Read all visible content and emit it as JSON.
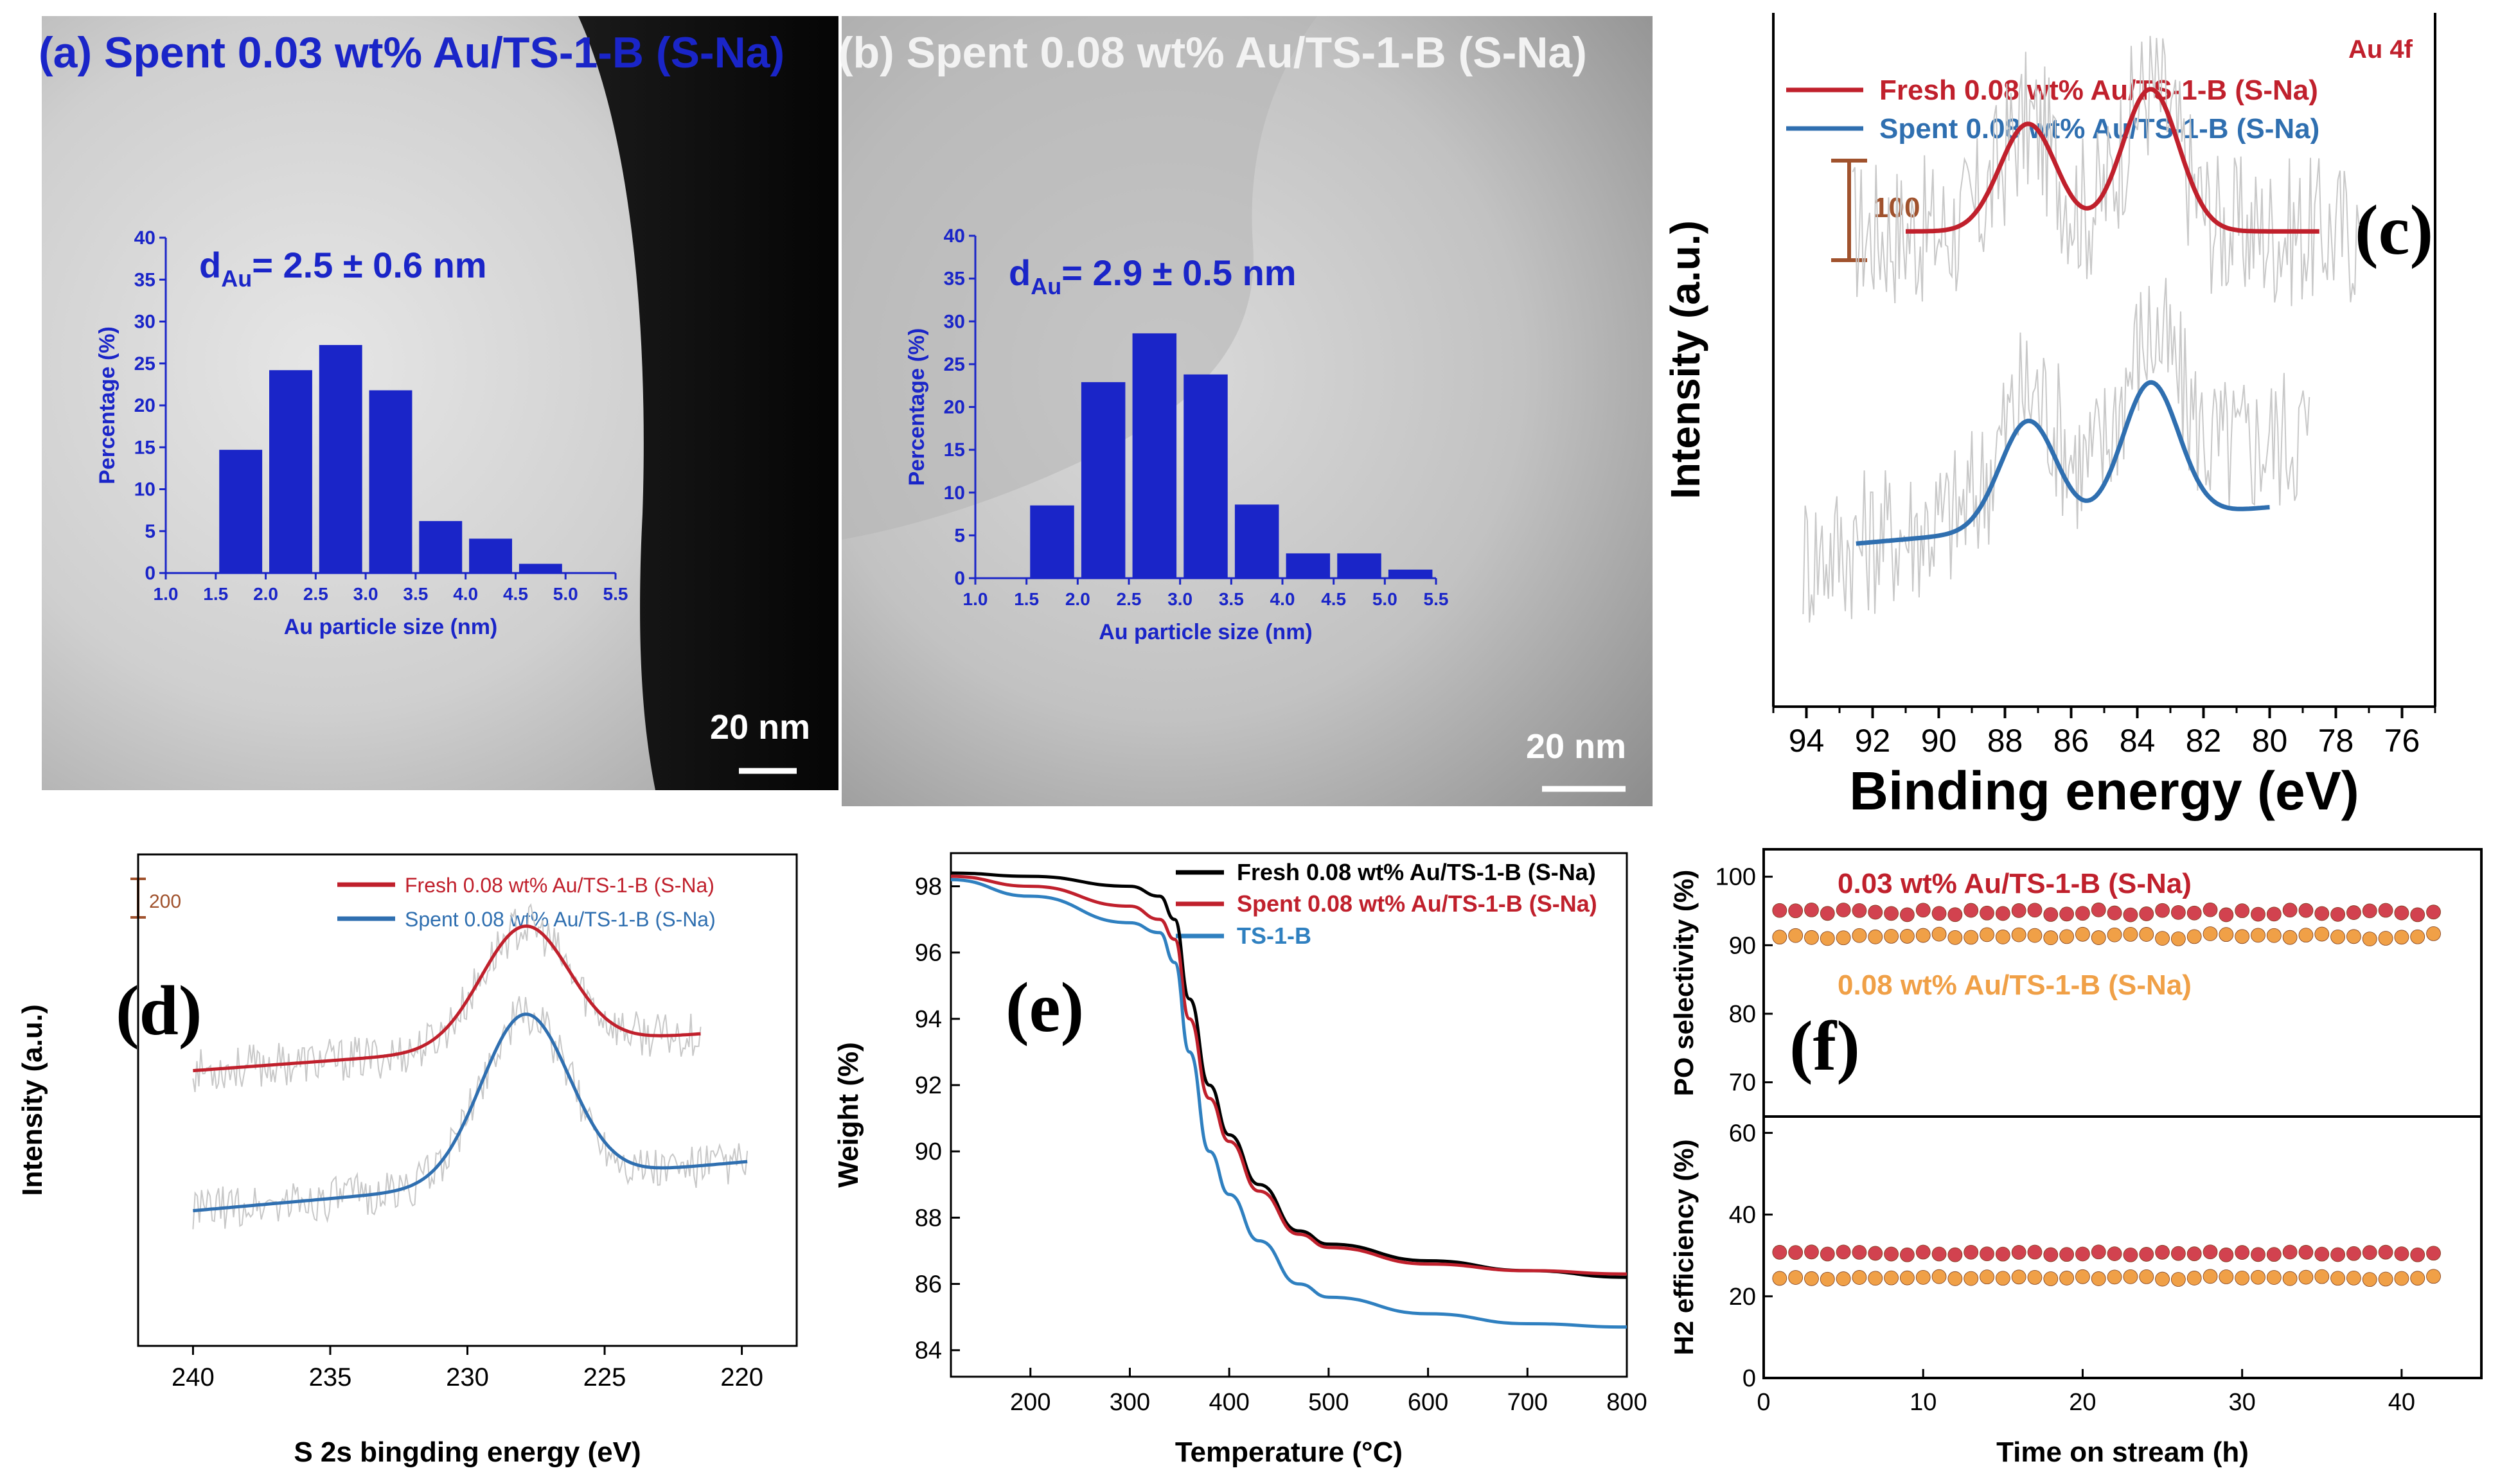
{
  "panels": {
    "a": {
      "title": "(a) Spent 0.03 wt% Au/TS-1-B (S-Na)",
      "scale_bar": "20 nm",
      "mean_label_prefix": "d",
      "mean_label_sub": "Au",
      "mean_label_rest": "= 2.5 ± 0.6 nm"
    },
    "b": {
      "title": "(b) Spent 0.08 wt% Au/TS-1-B (S-Na)",
      "scale_bar": "20 nm",
      "mean_label_prefix": "d",
      "mean_label_sub": "Au",
      "mean_label_rest": "= 2.9 ± 0.5 nm"
    },
    "c": {
      "letter": "(c)",
      "annotation": "Au 4f",
      "scale_label": "100"
    },
    "d": {
      "letter": "(d)",
      "scale_label": "200"
    },
    "e": {
      "letter": "(e)"
    },
    "f": {
      "letter": "(f)"
    }
  },
  "colors": {
    "hist_bar": "#1a25c8",
    "fresh_red": "#c0202c",
    "spent_blue": "#2f6fb0",
    "noise_gray": "#c8c8c8",
    "scale_brown": "#a0522d",
    "tga_black": "#000000",
    "tga_red": "#c0202c",
    "tga_blue": "#2f80c0",
    "dot_red": "#d2424f",
    "dot_orange": "#f0a047",
    "label_red": "#c0202c",
    "label_orange": "#f0a047"
  },
  "chart_data": [
    {
      "id": "a",
      "type": "bar",
      "xlabel": "Au particle size (nm)",
      "ylabel": "Percentage (%)",
      "xlim": [
        1.0,
        5.5
      ],
      "ylim": [
        0,
        40
      ],
      "xticks": [
        "1.0",
        "1.5",
        "2.0",
        "2.5",
        "3.0",
        "3.5",
        "4.0",
        "4.5",
        "5.0",
        "5.5"
      ],
      "yticks": [
        "0",
        "5",
        "10",
        "15",
        "20",
        "25",
        "30",
        "35",
        "40"
      ],
      "bar_centers": [
        1.75,
        2.25,
        2.75,
        3.25,
        3.75,
        4.25,
        4.75
      ],
      "values": [
        14.7,
        24.2,
        27.2,
        21.8,
        6.2,
        4.1,
        1.1
      ]
    },
    {
      "id": "b",
      "type": "bar",
      "xlabel": "Au particle size (nm)",
      "ylabel": "Percentage (%)",
      "xlim": [
        1.0,
        5.5
      ],
      "ylim": [
        0,
        40
      ],
      "xticks": [
        "1.0",
        "1.5",
        "2.0",
        "2.5",
        "3.0",
        "3.5",
        "4.0",
        "4.5",
        "5.0",
        "5.5"
      ],
      "yticks": [
        "0",
        "5",
        "10",
        "15",
        "20",
        "25",
        "30",
        "35",
        "40"
      ],
      "bar_centers": [
        1.75,
        2.25,
        2.75,
        3.25,
        3.75,
        4.25,
        4.75,
        5.25
      ],
      "values": [
        8.5,
        22.9,
        28.6,
        23.8,
        8.6,
        2.9,
        2.9,
        1.0
      ]
    },
    {
      "id": "c",
      "type": "line",
      "xlabel": "Binding energy (eV)",
      "ylabel": "Intensity (a.u.)",
      "xlim": [
        95,
        75
      ],
      "ylim": [
        0,
        10
      ],
      "xticks": [
        "94",
        "92",
        "90",
        "88",
        "86",
        "84",
        "82",
        "80",
        "78",
        "76"
      ],
      "series": [
        {
          "name": "Fresh 0.08 wt% Au/TS-1-B (S-Na)",
          "x_range": [
            91,
            78.5
          ],
          "baseline": 6.85,
          "peaks": [
            [
              87.3,
              1.55,
              0.85
            ],
            [
              83.6,
              2.05,
              0.85
            ]
          ]
        },
        {
          "name": "Spent 0.08 wt% Au/TS-1-B (S-Na)",
          "x_range": [
            92.5,
            80
          ],
          "baseline": 2.35,
          "slope": 0.12,
          "peaks": [
            [
              87.3,
              1.55,
              0.85
            ],
            [
              83.6,
              1.95,
              0.85
            ]
          ]
        }
      ]
    },
    {
      "id": "d",
      "type": "line",
      "xlabel": "S 2s bingding energy (eV)",
      "ylabel": "Intensity (a.u.)",
      "xlim": [
        242,
        218
      ],
      "ylim": [
        0,
        10
      ],
      "xticks": [
        "240",
        "235",
        "230",
        "225",
        "220"
      ],
      "series": [
        {
          "name": "Fresh 0.08 wt% Au/TS-1-B (S-Na)",
          "x_range": [
            240,
            221.5
          ],
          "base_start": 5.6,
          "base_end": 6.35,
          "peaks": [
            [
              227.9,
              2.45,
              1.6
            ]
          ]
        },
        {
          "name": "Spent 0.08 wt% Au/TS-1-B (S-Na)",
          "x_range": [
            240,
            219.8
          ],
          "base_start": 2.75,
          "base_end": 3.75,
          "peaks": [
            [
              227.9,
              3.4,
              1.6
            ]
          ]
        }
      ]
    },
    {
      "id": "e",
      "type": "line",
      "xlabel": "Temperature (°C)",
      "ylabel": "Weight (%)",
      "xlim": [
        120,
        800
      ],
      "ylim": [
        83.2,
        99.0
      ],
      "xticks": [
        "200",
        "300",
        "400",
        "500",
        "600",
        "700",
        "800"
      ],
      "yticks": [
        "84",
        "86",
        "88",
        "90",
        "92",
        "94",
        "96",
        "98"
      ],
      "series": [
        {
          "name": "Fresh 0.08 wt% Au/TS-1-B (S-Na)",
          "x": [
            120,
            200,
            300,
            330,
            345,
            360,
            380,
            400,
            430,
            470,
            500,
            600,
            700,
            800
          ],
          "y": [
            98.4,
            98.3,
            98.0,
            97.7,
            97.0,
            94.6,
            92.0,
            90.5,
            89.0,
            87.6,
            87.2,
            86.7,
            86.4,
            86.2
          ]
        },
        {
          "name": "Spent 0.08 wt% Au/TS-1-B (S-Na)",
          "x": [
            120,
            200,
            300,
            330,
            345,
            360,
            380,
            400,
            430,
            470,
            500,
            600,
            700,
            800
          ],
          "y": [
            98.3,
            98.0,
            97.4,
            97.0,
            96.4,
            94.0,
            91.6,
            90.3,
            88.8,
            87.5,
            87.1,
            86.6,
            86.4,
            86.3
          ]
        },
        {
          "name": "TS-1-B",
          "x": [
            120,
            200,
            300,
            330,
            345,
            360,
            380,
            400,
            430,
            470,
            500,
            600,
            700,
            800
          ],
          "y": [
            98.2,
            97.7,
            96.9,
            96.6,
            95.7,
            93.0,
            90.0,
            88.7,
            87.3,
            86.0,
            85.6,
            85.1,
            84.8,
            84.7
          ]
        }
      ]
    },
    {
      "id": "f",
      "type": "scatter",
      "xlabel": "Time on stream (h)",
      "xlim": [
        0,
        45
      ],
      "xticks": [
        "0",
        "10",
        "20",
        "30",
        "40"
      ],
      "top": {
        "ylabel": "PO selectivity (%)",
        "ylim": [
          65,
          104
        ],
        "yticks": [
          "70",
          "80",
          "90",
          "100"
        ]
      },
      "bottom": {
        "ylabel": "H2 efficiency (%)",
        "ylim": [
          0,
          64
        ],
        "yticks": [
          "0",
          "20",
          "40",
          "60"
        ]
      },
      "series": [
        {
          "name": "0.03 wt% Au/TS-1-B (S-Na)",
          "x_start": 1,
          "x_end": 42,
          "n": 42,
          "selectivity": 94.8,
          "h2_efficiency": 30.5
        },
        {
          "name": "0.08 wt% Au/TS-1-B (S-Na)",
          "x_start": 1,
          "x_end": 42,
          "n": 42,
          "selectivity": 91.3,
          "h2_efficiency": 24.5
        }
      ]
    }
  ]
}
